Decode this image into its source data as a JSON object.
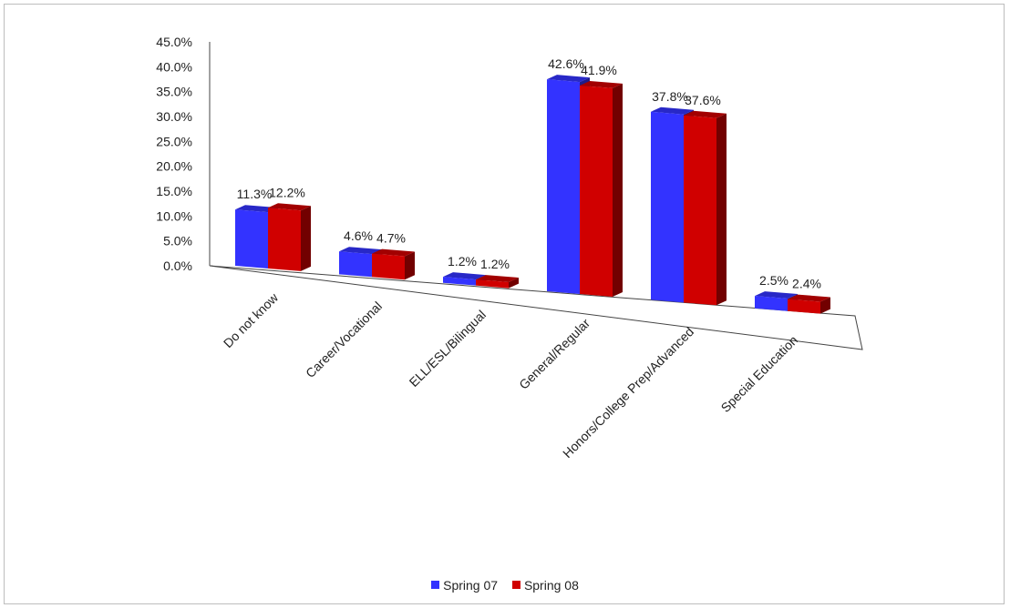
{
  "chart_data": {
    "type": "bar",
    "title": "",
    "xlabel": "",
    "ylabel": "",
    "ylim": [
      0,
      45
    ],
    "y_ticks": [
      "0.0%",
      "5.0%",
      "10.0%",
      "15.0%",
      "20.0%",
      "25.0%",
      "30.0%",
      "35.0%",
      "40.0%",
      "45.0%"
    ],
    "categories": [
      "Do not know",
      "Career/Vocational",
      "ELL/ESL/Bilingual",
      "General/Regular",
      "Honors/College Prep/Advanced",
      "Special Education"
    ],
    "series": [
      {
        "name": "Spring 07",
        "color": "#3333ff",
        "values": [
          11.3,
          4.6,
          1.2,
          42.6,
          37.8,
          2.5
        ],
        "labels": [
          "11.3%",
          "4.6%",
          "1.2%",
          "42.6%",
          "37.8%",
          "2.5%"
        ]
      },
      {
        "name": "Spring 08",
        "color": "#d00000",
        "values": [
          12.2,
          4.7,
          1.2,
          41.9,
          37.6,
          2.4
        ],
        "labels": [
          "12.2%",
          "4.7%",
          "1.2%",
          "41.9%",
          "37.6%",
          "2.4%"
        ]
      }
    ],
    "legend_position": "bottom",
    "grid": false,
    "style": "3d-clustered"
  }
}
